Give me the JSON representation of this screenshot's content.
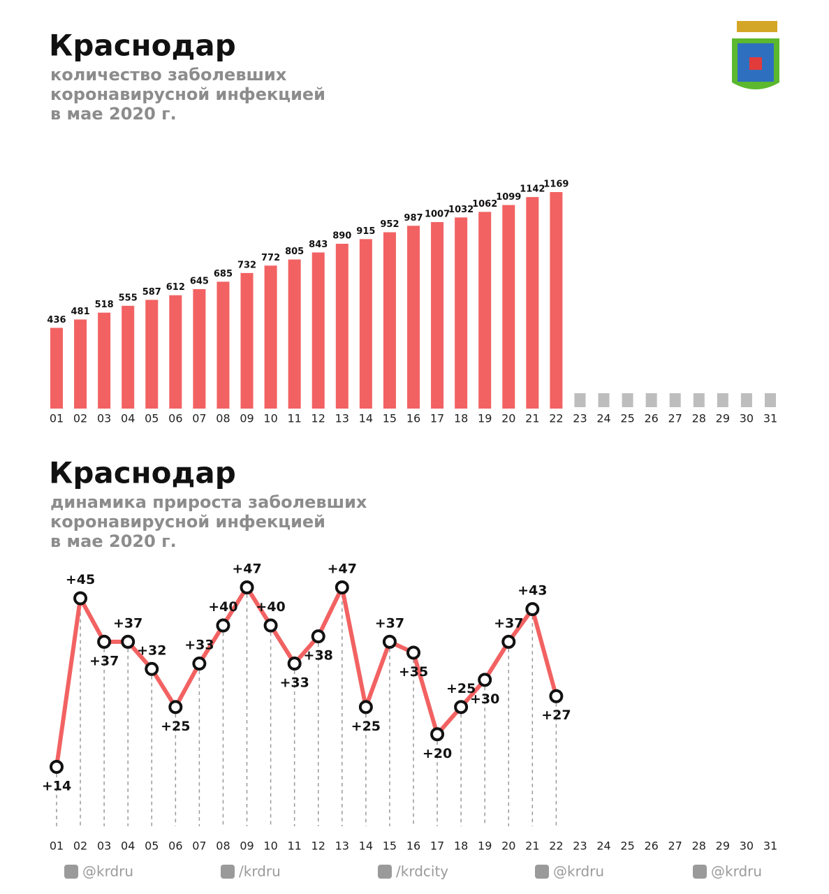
{
  "chart_data": [
    {
      "type": "bar",
      "title": "Краснодар",
      "subtitle": [
        "количество заболевших",
        "коронавирусной инфекцией",
        "в мае 2020 г."
      ],
      "categories": [
        "01",
        "02",
        "03",
        "04",
        "05",
        "06",
        "07",
        "08",
        "09",
        "10",
        "11",
        "12",
        "13",
        "14",
        "15",
        "16",
        "17",
        "18",
        "19",
        "20",
        "21",
        "22",
        "23",
        "24",
        "25",
        "26",
        "27",
        "28",
        "29",
        "30",
        "31"
      ],
      "values": [
        436,
        481,
        518,
        555,
        587,
        612,
        645,
        685,
        732,
        772,
        805,
        843,
        890,
        915,
        952,
        987,
        1007,
        1032,
        1062,
        1099,
        1142,
        1169,
        null,
        null,
        null,
        null,
        null,
        null,
        null,
        null,
        null
      ],
      "color": "#f26262"
    },
    {
      "type": "line",
      "title": "Краснодар",
      "subtitle": [
        "динамика прироста заболевших",
        "коронавирусной инфекцией",
        "в мае 2020 г."
      ],
      "categories": [
        "01",
        "02",
        "03",
        "04",
        "05",
        "06",
        "07",
        "08",
        "09",
        "10",
        "11",
        "12",
        "13",
        "14",
        "15",
        "16",
        "17",
        "18",
        "19",
        "20",
        "21",
        "22",
        "23",
        "24",
        "25",
        "26",
        "27",
        "28",
        "29",
        "30",
        "31"
      ],
      "values": [
        14,
        45,
        37,
        37,
        32,
        25,
        33,
        40,
        47,
        40,
        33,
        38,
        47,
        25,
        37,
        35,
        20,
        25,
        30,
        37,
        43,
        27,
        null,
        null,
        null,
        null,
        null,
        null,
        null,
        null,
        null
      ],
      "value_labels": [
        "+14",
        "+45",
        "+37",
        "+37",
        "+32",
        "+25",
        "+33",
        "+40",
        "+47",
        "+40",
        "+33",
        "+38",
        "+47",
        "+25",
        "+37",
        "+35",
        "+20",
        "+25",
        "+30",
        "+37",
        "+43",
        "+27",
        null,
        null,
        null,
        null,
        null,
        null,
        null,
        null,
        null
      ],
      "color": "#f26262"
    }
  ],
  "footer": [
    "@krdru",
    "/krdru",
    "/krdcity",
    "@krdru",
    "@krdru"
  ]
}
